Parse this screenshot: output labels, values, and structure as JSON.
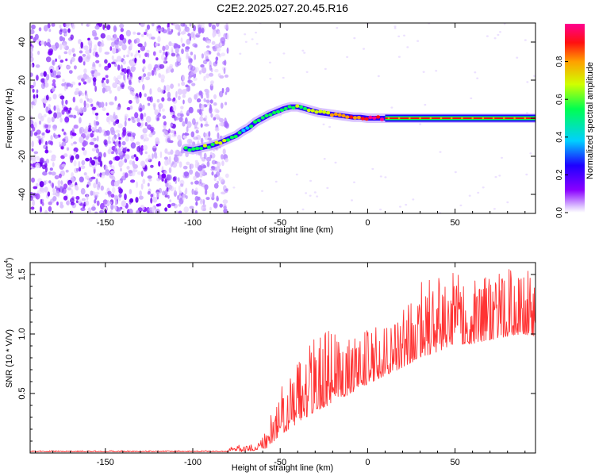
{
  "title": "C2E2.2025.027.20.45.R16",
  "chart_data": [
    {
      "type": "heatmap",
      "xlabel": "Height of straight line (km)",
      "ylabel": "Frequency (Hz)",
      "xlim": [
        -193,
        96
      ],
      "ylim": [
        -50,
        50
      ],
      "xticks": [
        -150,
        -100,
        -50,
        0,
        50
      ],
      "yticks": [
        -40,
        -20,
        0,
        20,
        40
      ],
      "grid": false,
      "colorbar": {
        "label": "Normalized spectral amplitude",
        "range": [
          0,
          1
        ],
        "ticks": [
          "0.0",
          "0.2",
          "0.4",
          "0.6",
          "0.8"
        ]
      },
      "colormap": [
        "#ffffff",
        "#e6ccff",
        "#8a00ff",
        "#2a00ff",
        "#00c8ff",
        "#00ff5a",
        "#c8ff00",
        "#ffb000",
        "#ff1a1a",
        "#ff0090"
      ],
      "noise_region": {
        "x": [
          -193,
          -80
        ],
        "y": [
          -50,
          50
        ]
      },
      "trace": {
        "x": [
          -104,
          -100,
          -95,
          -90,
          -85,
          -80,
          -75,
          -72,
          -68,
          -64,
          -60,
          -56,
          -52,
          -48,
          -44,
          -40,
          -36,
          -32,
          -28,
          -24,
          -20,
          -16,
          -12,
          -8,
          -4,
          0,
          4,
          8,
          12,
          20,
          40,
          60,
          80,
          96
        ],
        "y": [
          -16,
          -16.5,
          -15.5,
          -14.5,
          -13,
          -11,
          -9,
          -7,
          -5,
          -2,
          0,
          2,
          3.5,
          5,
          6,
          6,
          5,
          4,
          3,
          2.5,
          2,
          1.5,
          1,
          0.5,
          0.5,
          0,
          0,
          0,
          0,
          0,
          0,
          0,
          0,
          0
        ],
        "amp": [
          0.45,
          0.55,
          0.5,
          0.55,
          0.6,
          0.5,
          0.45,
          0.4,
          0.35,
          0.45,
          0.45,
          0.5,
          0.5,
          0.45,
          0.5,
          0.55,
          0.5,
          0.55,
          0.55,
          0.6,
          0.7,
          0.7,
          0.75,
          0.75,
          0.8,
          0.9,
          0.9,
          0.9,
          0.9,
          0.9,
          0.9,
          0.9,
          0.9,
          0.9
        ]
      }
    },
    {
      "type": "line",
      "xlabel": "Height of straight line (km)",
      "ylabel": "SNR (10 * V/V)",
      "scale_label": "(x10",
      "scale_exp": "4",
      "xlim": [
        -193,
        96
      ],
      "ylim": [
        0,
        1.6
      ],
      "xticks": [
        -150,
        -100,
        -50,
        0,
        50
      ],
      "yticks": [
        0.5,
        1.0,
        1.5
      ],
      "ytick_labels": [
        "0.5",
        "1.0",
        "1.5"
      ],
      "color": "#ff3333",
      "grid": false,
      "envelope": {
        "x": [
          -193,
          -80,
          -76,
          -72,
          -65,
          -58,
          -50,
          -40,
          -30,
          -20,
          -10,
          0,
          10,
          20,
          30,
          40,
          50,
          60,
          70,
          80,
          90,
          96
        ],
        "base": [
          0.01,
          0.01,
          0.02,
          0.01,
          0.02,
          0.04,
          0.15,
          0.25,
          0.35,
          0.42,
          0.5,
          0.58,
          0.65,
          0.72,
          0.8,
          0.85,
          0.9,
          0.92,
          0.95,
          0.98,
          1.0,
          0.95
        ],
        "peak": [
          0.02,
          0.02,
          0.1,
          0.05,
          0.08,
          0.2,
          0.55,
          0.75,
          1.05,
          1.08,
          0.95,
          1.05,
          1.1,
          1.2,
          1.45,
          1.5,
          1.55,
          1.45,
          1.5,
          1.55,
          1.6,
          1.5
        ]
      }
    }
  ]
}
